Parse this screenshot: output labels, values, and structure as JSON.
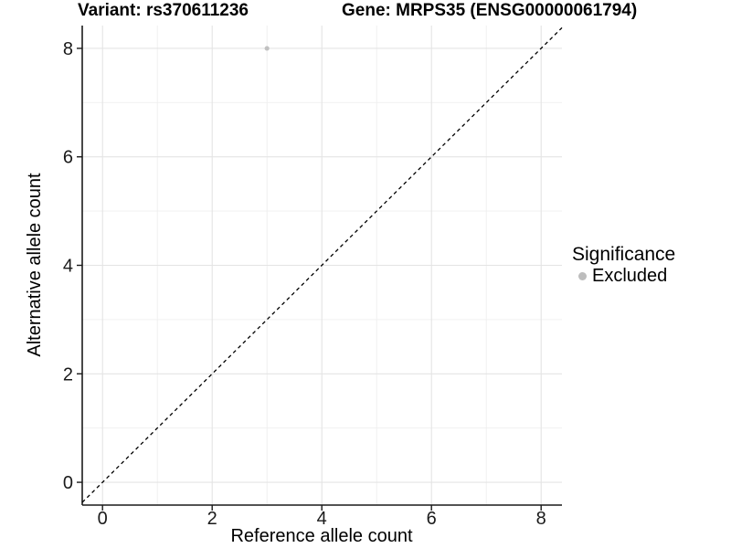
{
  "chart_data": {
    "type": "scatter",
    "title_left": "Variant: rs370611236",
    "title_right": "Gene: MRPS35 (ENSG00000061794)",
    "xlabel": "Reference allele count",
    "ylabel": "Alternative allele count",
    "xlim": [
      -0.37,
      8.38
    ],
    "ylim": [
      -0.42,
      8.42
    ],
    "xticks": [
      0,
      2,
      4,
      6,
      8
    ],
    "yticks": [
      0,
      2,
      4,
      6,
      8
    ],
    "grid_minor_step": 1,
    "points": [
      {
        "x": 3,
        "y": 8,
        "series": "Excluded"
      }
    ],
    "identity_line": {
      "slope": 1,
      "intercept": 0,
      "style": "dashed"
    },
    "legend": {
      "title": "Significance",
      "position": "right",
      "entries": [
        {
          "label": "Excluded",
          "color": "#bdbdbd"
        }
      ]
    },
    "colors": {
      "point": "#c1c1c1",
      "grid_major": "#e4e4e4",
      "grid_minor": "#efefef",
      "axis": "#1a1a1a",
      "tick_text": "#1a1a1a",
      "dashed_line": "#000000",
      "background": "#ffffff"
    }
  }
}
